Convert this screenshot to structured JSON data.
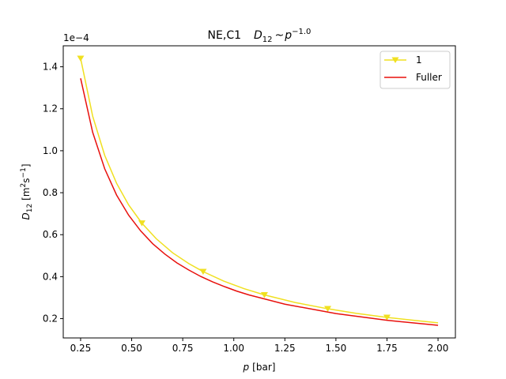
{
  "chart_data": {
    "type": "line",
    "title": {
      "prefix": "NE,C1",
      "formula": {
        "sym": "D",
        "sub": "12",
        "op": "~",
        "var": "p",
        "exp": "−1.0"
      }
    },
    "xlabel": {
      "var": "p",
      "unit": "[bar]"
    },
    "ylabel": {
      "var": "D",
      "sub": "12",
      "unit_a": "[m",
      "sup_a": "2",
      "unit_b": "s",
      "sup_b": "−1",
      "unit_c": "]"
    },
    "y_offset_label": "1e−4",
    "xlim": [
      0.165,
      2.085
    ],
    "ylim": [
      0.108,
      1.5
    ],
    "xticks": [
      0.25,
      0.5,
      0.75,
      1.0,
      1.25,
      1.5,
      1.75,
      2.0
    ],
    "xtick_labels": [
      "0.25",
      "0.50",
      "0.75",
      "1.00",
      "1.25",
      "1.50",
      "1.75",
      "2.00"
    ],
    "yticks": [
      0.2,
      0.4,
      0.6,
      0.8,
      1.0,
      1.2,
      1.4
    ],
    "ytick_labels": [
      "0.2",
      "0.4",
      "0.6",
      "0.8",
      "1.0",
      "1.2",
      "1.4"
    ],
    "legend_position": "top-right",
    "series": [
      {
        "name": "1",
        "color": "#f0e020",
        "marker": "triangle-down",
        "x": [
          0.25,
          0.309,
          0.368,
          0.426,
          0.485,
          0.55,
          0.62,
          0.7,
          0.78,
          0.85,
          0.95,
          1.05,
          1.15,
          1.3,
          1.46,
          1.6,
          1.75,
          1.88,
          2.0
        ],
        "y": [
          1.44,
          1.165,
          0.978,
          0.845,
          0.742,
          0.655,
          0.581,
          0.514,
          0.462,
          0.424,
          0.379,
          0.343,
          0.313,
          0.277,
          0.247,
          0.225,
          0.206,
          0.192,
          0.18
        ],
        "markers_x": [
          0.25,
          0.55,
          0.85,
          1.15,
          1.46,
          1.75
        ],
        "markers_y": [
          1.44,
          0.655,
          0.424,
          0.313,
          0.247,
          0.206
        ]
      },
      {
        "name": "Fuller",
        "color": "#e8100c",
        "x": [
          0.25,
          0.309,
          0.368,
          0.426,
          0.485,
          0.544,
          0.603,
          0.662,
          0.721,
          0.779,
          0.838,
          0.897,
          0.956,
          1.015,
          1.074,
          1.25,
          1.5,
          1.75,
          2.0
        ],
        "y": [
          1.345,
          1.088,
          0.914,
          0.789,
          0.693,
          0.618,
          0.557,
          0.508,
          0.466,
          0.432,
          0.401,
          0.375,
          0.352,
          0.331,
          0.313,
          0.269,
          0.224,
          0.192,
          0.168
        ]
      }
    ]
  }
}
